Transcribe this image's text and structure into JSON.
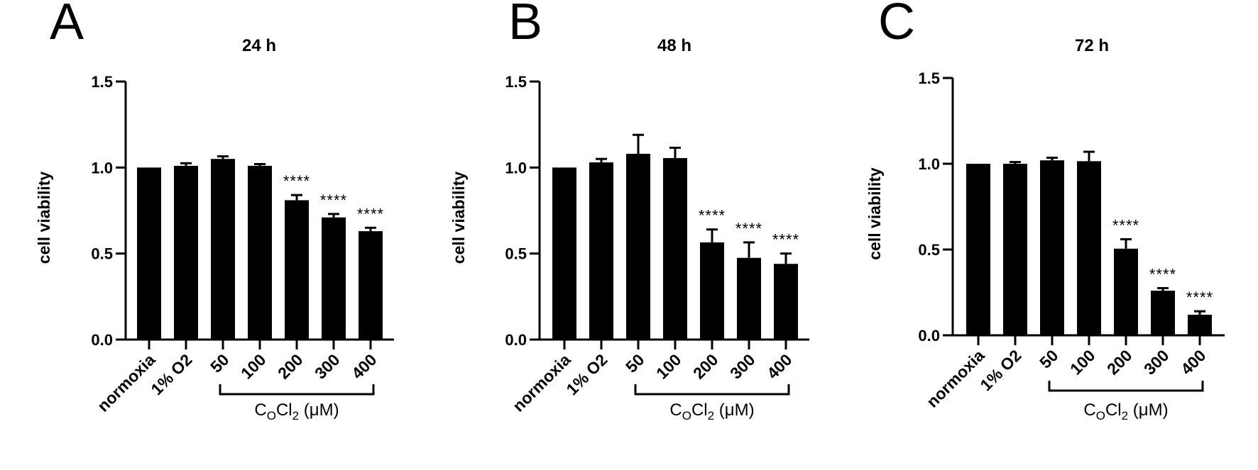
{
  "chart_data": [
    {
      "type": "bar",
      "panel_letter": "A",
      "title": "24 h",
      "ylabel": "cell viability",
      "xlabel": "",
      "ylim": [
        0,
        1.5
      ],
      "yticks": [
        "0.0",
        "0.5",
        "1.0",
        "1.5"
      ],
      "categories": [
        "normoxia",
        "1% O2",
        "50",
        "100",
        "200",
        "300",
        "400"
      ],
      "values": [
        1.0,
        1.01,
        1.05,
        1.01,
        0.81,
        0.71,
        0.63
      ],
      "errors": [
        0.0,
        0.015,
        0.015,
        0.01,
        0.03,
        0.02,
        0.02
      ],
      "annotations": [
        "",
        "",
        "",
        "",
        "****",
        "****",
        "****"
      ],
      "group_bracket": {
        "from": 2,
        "to": 6,
        "label_main": "C",
        "label_sub1": "O",
        "label_mid": "Cl",
        "label_sub2": "2",
        "label_tail": " (μM)"
      },
      "grid": false
    },
    {
      "type": "bar",
      "panel_letter": "B",
      "title": "48 h",
      "ylabel": "cell viability",
      "xlabel": "",
      "ylim": [
        0,
        1.5
      ],
      "yticks": [
        "0.0",
        "0.5",
        "1.0",
        "1.5"
      ],
      "categories": [
        "normoxia",
        "1% O2",
        "50",
        "100",
        "200",
        "300",
        "400"
      ],
      "values": [
        1.0,
        1.03,
        1.08,
        1.055,
        0.565,
        0.475,
        0.44
      ],
      "errors": [
        0.0,
        0.02,
        0.11,
        0.06,
        0.075,
        0.09,
        0.06
      ],
      "annotations": [
        "",
        "",
        "",
        "",
        "****",
        "****",
        "****"
      ],
      "group_bracket": {
        "from": 2,
        "to": 6,
        "label_main": "C",
        "label_sub1": "O",
        "label_mid": "Cl",
        "label_sub2": "2",
        "label_tail": " (μM)"
      },
      "grid": false
    },
    {
      "type": "bar",
      "panel_letter": "C",
      "title": "72 h",
      "ylabel": "cell viability",
      "xlabel": "",
      "ylim": [
        0,
        1.5
      ],
      "yticks": [
        "0.0",
        "0.5",
        "1.0",
        "1.5"
      ],
      "categories": [
        "normoxia",
        "1% O2",
        "50",
        "100",
        "200",
        "300",
        "400"
      ],
      "values": [
        1.0,
        1.0,
        1.02,
        1.015,
        0.505,
        0.26,
        0.12
      ],
      "errors": [
        0.0,
        0.01,
        0.015,
        0.055,
        0.055,
        0.015,
        0.02
      ],
      "annotations": [
        "",
        "",
        "",
        "",
        "****",
        "****",
        "****"
      ],
      "group_bracket": {
        "from": 2,
        "to": 6,
        "label_main": "C",
        "label_sub1": "O",
        "label_mid": "Cl",
        "label_sub2": "2",
        "label_tail": " (μM)"
      },
      "grid": false
    }
  ],
  "colors": {
    "bar": "#000000",
    "axis": "#000000",
    "background": "#ffffff"
  }
}
